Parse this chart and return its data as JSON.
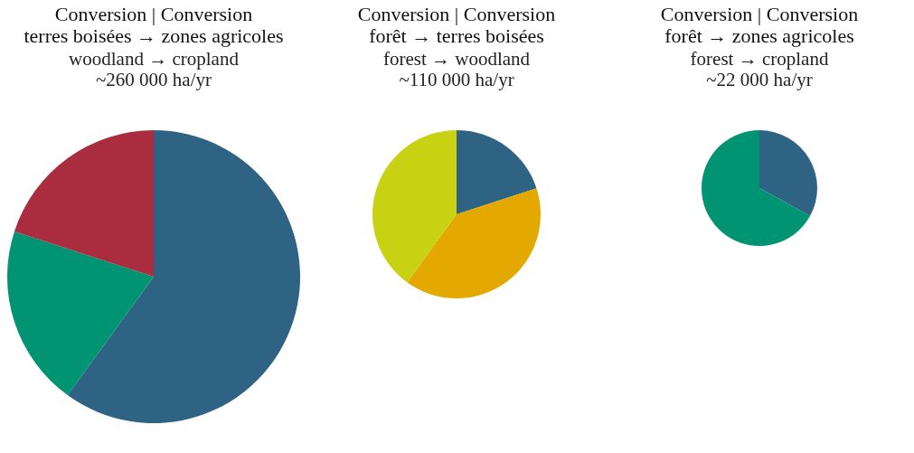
{
  "chart_data": [
    {
      "type": "pie",
      "title": "Conversion | Conversion\nterres boisées → zones agricoles",
      "subtitle": "woodland → cropland\n~260 000 ha/yr",
      "categories": [
        null,
        null,
        null
      ],
      "values": [
        60,
        20,
        20
      ],
      "colors": [
        "#2e6384",
        "#009473",
        "#a92d3e"
      ]
    },
    {
      "type": "pie",
      "title": "Conversion | Conversion\nforêt → terres boisées",
      "subtitle": "forest → woodland\n~110 000 ha/yr",
      "categories": [
        null,
        null,
        null
      ],
      "values": [
        20,
        40,
        40
      ],
      "colors": [
        "#2e6384",
        "#e4a900",
        "#c9d113"
      ]
    },
    {
      "type": "pie",
      "title": "Conversion | Conversion\nforêt → zones agricoles",
      "subtitle": "forest → cropland\n~22 000 ha/yr",
      "categories": [
        null,
        null
      ],
      "values": [
        33,
        67
      ],
      "colors": [
        "#2e6384",
        "#009473"
      ]
    }
  ]
}
